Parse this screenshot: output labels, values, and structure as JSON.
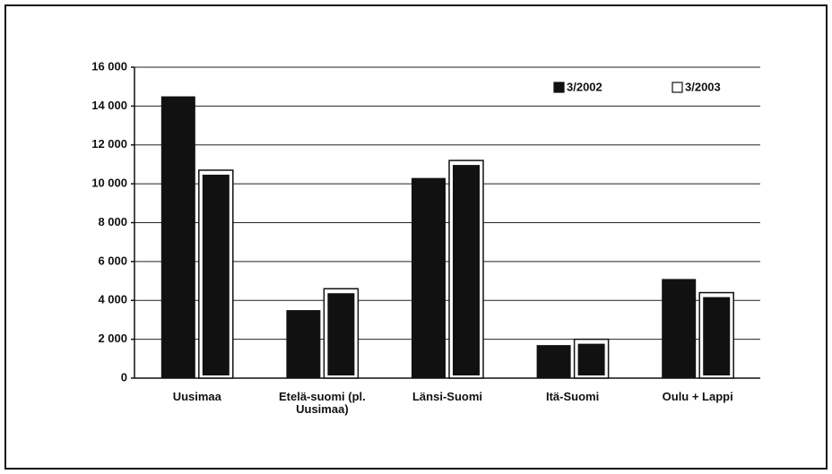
{
  "chart_data": {
    "type": "bar",
    "categories": [
      "Uusimaa",
      "Etelä-suomi (pl. Uusimaa)",
      "Länsi-Suomi",
      "Itä-Suomi",
      "Oulu + Lappi"
    ],
    "series": [
      {
        "name": "3/2002",
        "color": "#111111",
        "values": [
          14500,
          3500,
          10300,
          1700,
          5100
        ]
      },
      {
        "name": "3/2003",
        "color": "#ffffff",
        "values": [
          10700,
          4600,
          11200,
          2000,
          4400
        ]
      }
    ],
    "ylim": [
      0,
      16000
    ],
    "yticks": [
      0,
      {
        "value": 2000,
        "label": "2 000"
      },
      {
        "value": 4000,
        "label": "4 000"
      },
      {
        "value": 6000,
        "label": "6 000"
      },
      {
        "value": 8000,
        "label": "8 000"
      },
      {
        "value": 10000,
        "label": "10 000"
      },
      {
        "value": 12000,
        "label": "12 000"
      },
      {
        "value": 14000,
        "label": "14 000"
      },
      {
        "value": 16000,
        "label": "16 000"
      }
    ],
    "grid": true,
    "legend": "top-right"
  }
}
